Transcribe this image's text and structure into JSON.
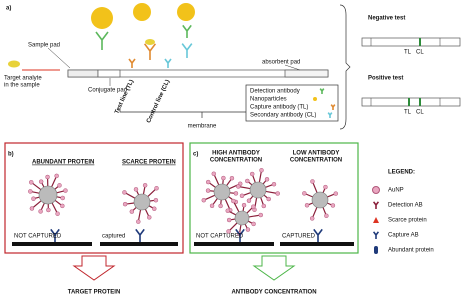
{
  "panel_a": {
    "label": "a)",
    "sample_pad": "Sample pad",
    "absorbent_pad": "absorbent pad",
    "target_analyte": [
      "Target analyte",
      "in the sample"
    ],
    "conjugate_pad": "Conjugate pad",
    "test_line": "Test line (TL)",
    "control_line": "Control line (CL)",
    "membrane": "membrane",
    "legend": [
      "Detection antibody",
      "Nanoparticles",
      "Capture antibody (TL)",
      "Secondary antibody (CL)"
    ],
    "negative_test": {
      "title": "Negative test",
      "tl": "TL",
      "cl": "CL"
    },
    "positive_test": {
      "title": "Positive test",
      "tl": "TL",
      "cl": "CL"
    }
  },
  "panel_b": {
    "label": "b)",
    "abundant": "ABUNDANT PROTEIN",
    "scarce": "SCARCE PROTEIN",
    "not_captured": "NOT CAPTURED",
    "captured": "captured",
    "caption": "TARGET PROTEIN"
  },
  "panel_c": {
    "label": "c)",
    "high": [
      "HIGH ANTIBODY",
      "CONCENTRATION"
    ],
    "low": [
      "LOW ANTIBODY",
      "CONCENTRATION"
    ],
    "not_captured": "NOT CAPTURED",
    "captured": "CAPTURED",
    "caption": "ANTIBODY CONCENTRATION"
  },
  "legend": {
    "title": "LEGEND:",
    "items": [
      "AuNP",
      "Detection AB",
      "Scarce protein",
      "Capture AB",
      "Abundant protein"
    ]
  }
}
